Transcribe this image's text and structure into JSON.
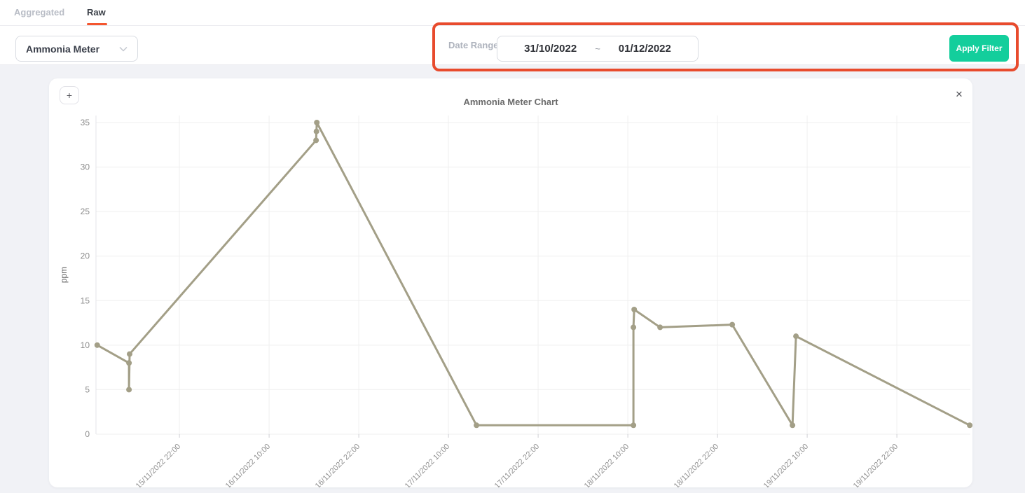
{
  "tabs": {
    "aggregated": "Aggregated",
    "raw": "Raw"
  },
  "filter_bar": {
    "meter_select": {
      "value": "Ammonia Meter"
    },
    "date_range": {
      "label": "Date Range",
      "start": "31/10/2022",
      "separator": "~",
      "end": "01/12/2022"
    },
    "apply_button_label": "Apply Filter"
  },
  "chart_card": {
    "add_button_label": "+",
    "title": "Ammonia Meter Chart",
    "close_icon_glyph": "✕"
  },
  "colors": {
    "tab_accent": "#f4562f",
    "highlight_border": "#e84b2d",
    "apply_green": "#13ce9c",
    "series_line": "#a39f87",
    "gridline": "#efefef",
    "axis_text": "#909090"
  },
  "chart_data": {
    "type": "line",
    "title": "Ammonia Meter Chart",
    "xlabel": "",
    "ylabel": "ppm",
    "ylim": [
      0,
      35
    ],
    "y_ticks": [
      0,
      5,
      10,
      15,
      20,
      25,
      30,
      35
    ],
    "grid": true,
    "legend_position": "none",
    "x_axis_start": "15/11/2022 10:50",
    "x_axis_end": "20/11/2022 07:50",
    "x_ticks": [
      "15/11/2022 22:00",
      "16/11/2022 10:00",
      "16/11/2022 22:00",
      "17/11/2022 10:00",
      "17/11/2022 22:00",
      "18/11/2022 10:00",
      "18/11/2022 22:00",
      "19/11/2022 10:00",
      "19/11/2022 22:00"
    ],
    "series": [
      {
        "name": "Ammonia Meter",
        "color": "#a39f87",
        "points": [
          {
            "t": "15/11/2022 11:00",
            "v": 10
          },
          {
            "t": "15/11/2022 15:15",
            "v": 8
          },
          {
            "t": "15/11/2022 15:15",
            "v": 5
          },
          {
            "t": "15/11/2022 15:20",
            "v": 9
          },
          {
            "t": "16/11/2022 16:17",
            "v": 33
          },
          {
            "t": "16/11/2022 16:20",
            "v": 34
          },
          {
            "t": "16/11/2022 16:23",
            "v": 35
          },
          {
            "t": "17/11/2022 13:45",
            "v": 1
          },
          {
            "t": "18/11/2022 10:45",
            "v": 1
          },
          {
            "t": "18/11/2022 10:45",
            "v": 12
          },
          {
            "t": "18/11/2022 10:51",
            "v": 14
          },
          {
            "t": "18/11/2022 14:19",
            "v": 12
          },
          {
            "t": "18/11/2022 23:58",
            "v": 12.3
          },
          {
            "t": "19/11/2022 08:02",
            "v": 1
          },
          {
            "t": "19/11/2022 08:30",
            "v": 11
          },
          {
            "t": "20/11/2022 07:45",
            "v": 1
          }
        ]
      }
    ]
  }
}
